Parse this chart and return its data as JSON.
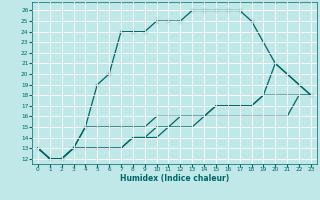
{
  "title": "",
  "xlabel": "Humidex (Indice chaleur)",
  "background_color": "#c0e8e8",
  "line_color": "#006666",
  "grid_color": "#ffffff",
  "xlim": [
    -0.5,
    23.5
  ],
  "ylim": [
    11.5,
    26.8
  ],
  "xticks": [
    0,
    1,
    2,
    3,
    4,
    5,
    6,
    7,
    8,
    9,
    10,
    11,
    12,
    13,
    14,
    15,
    16,
    17,
    18,
    19,
    20,
    21,
    22,
    23
  ],
  "yticks": [
    12,
    13,
    14,
    15,
    16,
    17,
    18,
    19,
    20,
    21,
    22,
    23,
    24,
    25,
    26
  ],
  "series": [
    [
      13,
      12,
      12,
      13,
      15,
      19,
      20,
      24,
      24,
      24,
      25,
      25,
      25,
      26,
      26,
      26,
      26,
      26,
      25,
      23,
      21,
      20,
      19,
      18
    ],
    [
      13,
      12,
      12,
      13,
      15,
      15,
      15,
      15,
      15,
      15,
      16,
      16,
      16,
      16,
      16,
      17,
      17,
      17,
      17,
      18,
      21,
      20,
      19,
      18
    ],
    [
      13,
      12,
      12,
      13,
      13,
      13,
      13,
      13,
      14,
      14,
      15,
      15,
      16,
      16,
      16,
      17,
      17,
      17,
      17,
      18,
      18,
      18,
      18,
      18
    ],
    [
      13,
      12,
      12,
      13,
      13,
      13,
      13,
      13,
      14,
      14,
      14,
      15,
      15,
      15,
      16,
      16,
      16,
      16,
      16,
      16,
      16,
      16,
      18,
      18
    ]
  ],
  "markers": [
    "+",
    null,
    null,
    null
  ],
  "marker_sizes": [
    5,
    0,
    0,
    0
  ],
  "linewidths": [
    0.9,
    0.9,
    0.9,
    0.9
  ]
}
